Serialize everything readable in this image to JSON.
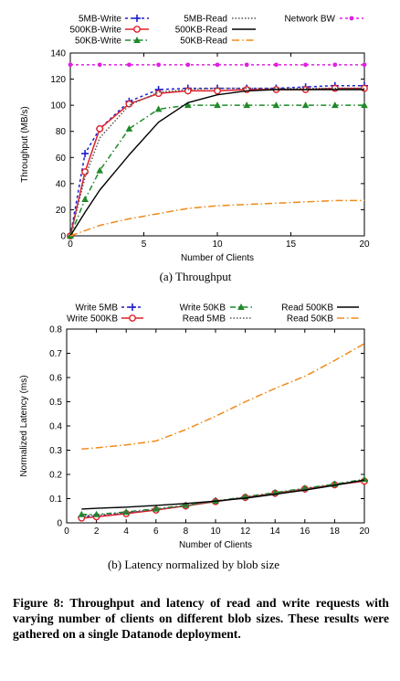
{
  "chart_data": [
    {
      "type": "line",
      "xlabel": "Number of Clients",
      "ylabel": "Throughput (MB/s)",
      "caption": "(a) Throughput",
      "xlim": [
        0,
        20
      ],
      "ylim": [
        0,
        140
      ],
      "xticks": [
        0,
        5,
        10,
        15,
        20
      ],
      "yticks": [
        0,
        20,
        40,
        60,
        80,
        100,
        120,
        140
      ],
      "legend": "top",
      "grid": false,
      "series": [
        {
          "name": "5MB-Write",
          "color": "#1f1fd0",
          "dash": "3,3",
          "marker": "plus",
          "x": [
            0,
            1,
            2,
            4,
            6,
            8,
            10,
            12,
            14,
            16,
            18,
            20
          ],
          "y": [
            0,
            63,
            82,
            103,
            112,
            113,
            113,
            113,
            113,
            114,
            115,
            115
          ]
        },
        {
          "name": "500KB-Write",
          "color": "#e0202a",
          "dash": "",
          "marker": "circle",
          "x": [
            0,
            1,
            2,
            4,
            6,
            8,
            10,
            12,
            14,
            16,
            18,
            20
          ],
          "y": [
            0,
            49,
            82,
            101,
            109,
            111,
            111,
            112,
            112,
            112,
            113,
            113
          ]
        },
        {
          "name": "50KB-Write",
          "color": "#1f8a2a",
          "dash": "6,3,1.5,3",
          "marker": "triangle",
          "x": [
            0,
            1,
            2,
            4,
            6,
            8,
            10,
            12,
            14,
            16,
            18,
            20
          ],
          "y": [
            0,
            28,
            50,
            82,
            97,
            100,
            100,
            100,
            100,
            100,
            100,
            100
          ]
        },
        {
          "name": "5MB-Read",
          "color": "#555555",
          "dash": "1.5,2",
          "marker": "none",
          "x": [
            0,
            1,
            2,
            4,
            6,
            8,
            10,
            12,
            14,
            16,
            18,
            20
          ],
          "y": [
            0,
            45,
            75,
            100,
            110,
            112,
            113,
            113,
            113,
            113,
            113,
            113
          ]
        },
        {
          "name": "500KB-Read",
          "color": "#000000",
          "dash": "",
          "marker": "none",
          "x": [
            0,
            1,
            2,
            4,
            6,
            8,
            10,
            12,
            14,
            16,
            18,
            20
          ],
          "y": [
            0,
            18,
            35,
            62,
            87,
            102,
            108,
            111,
            112,
            112,
            112,
            112
          ]
        },
        {
          "name": "50KB-Read",
          "color": "#f08a1a",
          "dash": "8,3,1.5,3",
          "marker": "none",
          "x": [
            0,
            1,
            2,
            4,
            6,
            8,
            10,
            12,
            14,
            16,
            18,
            20
          ],
          "y": [
            0,
            4,
            8,
            13,
            17,
            21,
            23,
            24,
            25,
            26,
            27,
            27
          ]
        },
        {
          "name": "Network BW",
          "color": "#e020e0",
          "dash": "3,3",
          "marker": "dot",
          "x": [
            0,
            2,
            4,
            6,
            8,
            10,
            12,
            14,
            16,
            18,
            20
          ],
          "y": [
            131,
            131,
            131,
            131,
            131,
            131,
            131,
            131,
            131,
            131,
            131
          ]
        }
      ]
    },
    {
      "type": "line",
      "xlabel": "Number of Clients",
      "ylabel": "Normalized Latency (ms)",
      "caption": "(b) Latency normalized by blob size",
      "xlim": [
        0,
        20
      ],
      "ylim": [
        0,
        0.8
      ],
      "xticks": [
        0,
        2,
        4,
        6,
        8,
        10,
        12,
        14,
        16,
        18,
        20
      ],
      "yticks": [
        0,
        0.1,
        0.2,
        0.3,
        0.4,
        0.5,
        0.6,
        0.7,
        0.8
      ],
      "legend": "top",
      "grid": false,
      "series": [
        {
          "name": "Write 5MB",
          "color": "#1f1fd0",
          "dash": "3,3",
          "marker": "plus",
          "x": [
            1,
            2,
            4,
            6,
            8,
            10,
            12,
            14,
            16,
            18,
            20
          ],
          "y": [
            0.025,
            0.027,
            0.04,
            0.055,
            0.07,
            0.09,
            0.105,
            0.122,
            0.14,
            0.158,
            0.175
          ]
        },
        {
          "name": "Write 500KB",
          "color": "#e0202a",
          "dash": "",
          "marker": "circle",
          "x": [
            1,
            2,
            4,
            6,
            8,
            10,
            12,
            14,
            16,
            18,
            20
          ],
          "y": [
            0.02,
            0.025,
            0.038,
            0.053,
            0.07,
            0.088,
            0.105,
            0.122,
            0.14,
            0.157,
            0.172
          ]
        },
        {
          "name": "Write 50KB",
          "color": "#1f8a2a",
          "dash": "6,3,1.5,3",
          "marker": "triangle",
          "x": [
            1,
            2,
            4,
            6,
            8,
            10,
            12,
            14,
            16,
            18,
            20
          ],
          "y": [
            0.035,
            0.035,
            0.045,
            0.058,
            0.073,
            0.09,
            0.108,
            0.125,
            0.143,
            0.16,
            0.18
          ]
        },
        {
          "name": "Read 5MB",
          "color": "#555555",
          "dash": "1.5,2",
          "marker": "none",
          "x": [
            1,
            2,
            4,
            6,
            8,
            10,
            12,
            14,
            16,
            18,
            20
          ],
          "y": [
            0.03,
            0.032,
            0.042,
            0.055,
            0.07,
            0.088,
            0.105,
            0.122,
            0.14,
            0.157,
            0.175
          ]
        },
        {
          "name": "Read 500KB",
          "color": "#000000",
          "dash": "",
          "marker": "none",
          "x": [
            1,
            2,
            4,
            6,
            8,
            10,
            12,
            14,
            16,
            18,
            20
          ],
          "y": [
            0.057,
            0.06,
            0.065,
            0.072,
            0.08,
            0.09,
            0.102,
            0.118,
            0.135,
            0.155,
            0.177
          ]
        },
        {
          "name": "Read 50KB",
          "color": "#f08a1a",
          "dash": "8,3,1.5,3",
          "marker": "none",
          "x": [
            1,
            2,
            4,
            6,
            8,
            10,
            12,
            14,
            16,
            18,
            20
          ],
          "y": [
            0.305,
            0.31,
            0.322,
            0.338,
            0.385,
            0.44,
            0.5,
            0.555,
            0.605,
            0.67,
            0.74
          ]
        }
      ]
    }
  ],
  "figure_caption": "Figure 8: Throughput and latency of read and write requests with varying number of clients on different blob sizes. These results were gathered on a single Datanode deployment."
}
